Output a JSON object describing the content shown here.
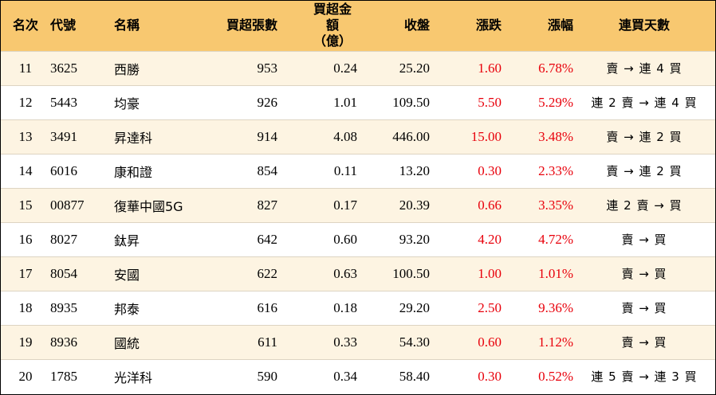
{
  "headers": {
    "rank": "名次",
    "code": "代號",
    "name": "名稱",
    "lots": "買超張數",
    "amount_line1": "買超金額",
    "amount_line2": "（億）",
    "close": "收盤",
    "change": "漲跌",
    "pct": "漲幅",
    "streak": "連買天數"
  },
  "rows": [
    {
      "rank": "11",
      "code": "3625",
      "name": "西勝",
      "lots": "953",
      "amount": "0.24",
      "close": "25.20",
      "change": "1.60",
      "pct": "6.78%",
      "streak": "賣 → 連 4 買"
    },
    {
      "rank": "12",
      "code": "5443",
      "name": "均豪",
      "lots": "926",
      "amount": "1.01",
      "close": "109.50",
      "change": "5.50",
      "pct": "5.29%",
      "streak": "連 2 賣 → 連 4 買"
    },
    {
      "rank": "13",
      "code": "3491",
      "name": "昇達科",
      "lots": "914",
      "amount": "4.08",
      "close": "446.00",
      "change": "15.00",
      "pct": "3.48%",
      "streak": "賣 → 連 2 買"
    },
    {
      "rank": "14",
      "code": "6016",
      "name": "康和證",
      "lots": "854",
      "amount": "0.11",
      "close": "13.20",
      "change": "0.30",
      "pct": "2.33%",
      "streak": "賣 → 連 2 買"
    },
    {
      "rank": "15",
      "code": "00877",
      "name": "復華中國5G",
      "lots": "827",
      "amount": "0.17",
      "close": "20.39",
      "change": "0.66",
      "pct": "3.35%",
      "streak": "連 2 賣 → 買"
    },
    {
      "rank": "16",
      "code": "8027",
      "name": "鈦昇",
      "lots": "642",
      "amount": "0.60",
      "close": "93.20",
      "change": "4.20",
      "pct": "4.72%",
      "streak": "賣 → 買"
    },
    {
      "rank": "17",
      "code": "8054",
      "name": "安國",
      "lots": "622",
      "amount": "0.63",
      "close": "100.50",
      "change": "1.00",
      "pct": "1.01%",
      "streak": "賣 → 買"
    },
    {
      "rank": "18",
      "code": "8935",
      "name": "邦泰",
      "lots": "616",
      "amount": "0.18",
      "close": "29.20",
      "change": "2.50",
      "pct": "9.36%",
      "streak": "賣 → 買"
    },
    {
      "rank": "19",
      "code": "8936",
      "name": "國統",
      "lots": "611",
      "amount": "0.33",
      "close": "54.30",
      "change": "0.60",
      "pct": "1.12%",
      "streak": "賣 → 買"
    },
    {
      "rank": "20",
      "code": "1785",
      "name": "光洋科",
      "lots": "590",
      "amount": "0.34",
      "close": "58.40",
      "change": "0.30",
      "pct": "0.52%",
      "streak": "連 5 賣 → 連 3 買"
    }
  ],
  "colors": {
    "header_bg": "#f8c870",
    "row_alt_bg": "#fdf4e2",
    "up_red": "#e8000b"
  }
}
